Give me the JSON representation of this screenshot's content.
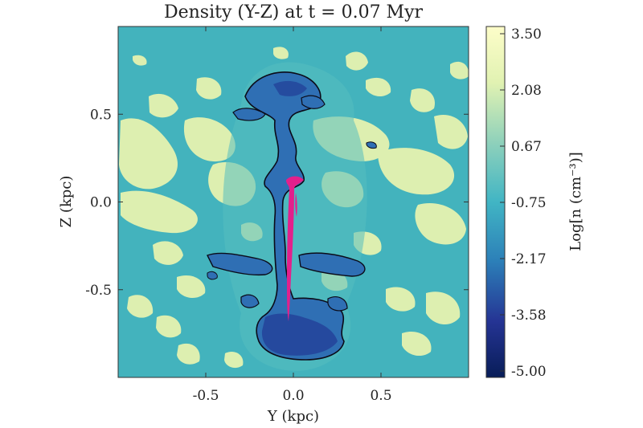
{
  "figure": {
    "title": "Density (Y-Z) at t = 0.07 Myr",
    "xlabel": "Y (kpc)",
    "ylabel": "Z (kpc)",
    "x_ticks": [
      {
        "value": -0.5,
        "label": "-0.5"
      },
      {
        "value": 0.0,
        "label": "0.0"
      },
      {
        "value": 0.5,
        "label": "0.5"
      }
    ],
    "y_ticks": [
      {
        "value": 0.5,
        "label": "0.5"
      },
      {
        "value": 0.0,
        "label": "0.0"
      },
      {
        "value": -0.5,
        "label": "-0.5"
      }
    ],
    "colorbar": {
      "label": "Log[n (cm⁻³)]",
      "ticks": [
        "3.50",
        "2.08",
        "0.67",
        "-0.75",
        "-2.17",
        "-3.58",
        "-5.00"
      ],
      "colors": [
        "#fdfdc9",
        "#e1f2b2",
        "#8fd1bb",
        "#41b5c4",
        "#2c7fb8",
        "#253494",
        "#081d58"
      ]
    },
    "colors": {
      "background_field": "#43b3bd",
      "cloud": "#e6f3b0",
      "cavity": "#2f6fb4",
      "cavity_deep": "#23439a",
      "contour": "#0b0b18",
      "jet": "#e3208c"
    }
  }
}
